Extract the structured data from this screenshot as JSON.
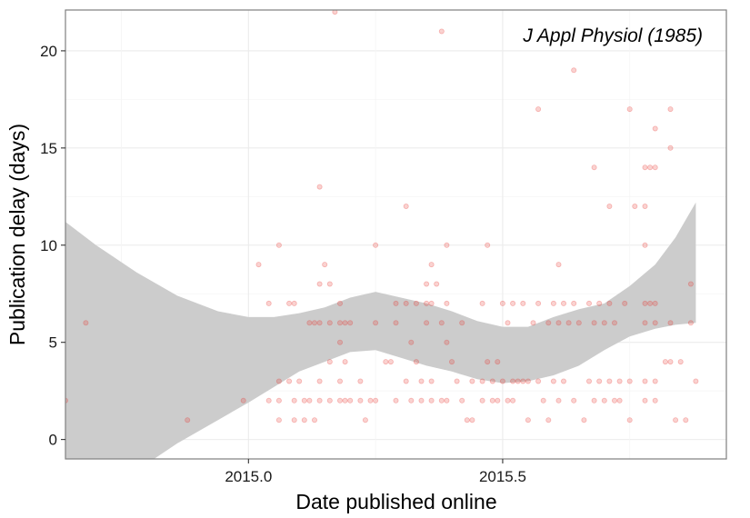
{
  "chart_data": {
    "type": "scatter",
    "title": "",
    "annotation": "J Appl Physiol (1985)",
    "xlabel": "Date published online",
    "ylabel": "Publication delay (days)",
    "xlim": [
      2014.64,
      2015.94
    ],
    "ylim": [
      -1,
      22.1
    ],
    "x_ticks": [
      2015.0,
      2015.5
    ],
    "x_tick_labels": [
      "2015.0",
      "2015.5"
    ],
    "y_ticks": [
      0,
      5,
      10,
      15,
      20
    ],
    "y_tick_labels": [
      "0",
      "5",
      "10",
      "15",
      "20"
    ],
    "grid": true,
    "point_color": "#e8302a",
    "band_color": "#cccccc",
    "points": [
      [
        2014.64,
        2
      ],
      [
        2014.68,
        6
      ],
      [
        2014.88,
        1
      ],
      [
        2014.99,
        2
      ],
      [
        2015.02,
        9
      ],
      [
        2015.04,
        7
      ],
      [
        2015.04,
        2
      ],
      [
        2015.06,
        10
      ],
      [
        2015.06,
        3
      ],
      [
        2015.06,
        2
      ],
      [
        2015.06,
        1
      ],
      [
        2015.08,
        7
      ],
      [
        2015.08,
        3
      ],
      [
        2015.09,
        7
      ],
      [
        2015.09,
        2
      ],
      [
        2015.09,
        1
      ],
      [
        2015.1,
        3
      ],
      [
        2015.11,
        2
      ],
      [
        2015.11,
        1
      ],
      [
        2015.12,
        6
      ],
      [
        2015.12,
        2
      ],
      [
        2015.13,
        6
      ],
      [
        2015.13,
        1
      ],
      [
        2015.14,
        13
      ],
      [
        2015.14,
        8
      ],
      [
        2015.14,
        6
      ],
      [
        2015.14,
        3
      ],
      [
        2015.14,
        2
      ],
      [
        2015.15,
        9
      ],
      [
        2015.16,
        8
      ],
      [
        2015.16,
        6
      ],
      [
        2015.16,
        4
      ],
      [
        2015.16,
        2
      ],
      [
        2015.17,
        22
      ],
      [
        2015.18,
        7
      ],
      [
        2015.18,
        6
      ],
      [
        2015.18,
        5
      ],
      [
        2015.18,
        3
      ],
      [
        2015.18,
        2
      ],
      [
        2015.19,
        6
      ],
      [
        2015.19,
        4
      ],
      [
        2015.19,
        2
      ],
      [
        2015.2,
        6
      ],
      [
        2015.2,
        2
      ],
      [
        2015.22,
        3
      ],
      [
        2015.22,
        2
      ],
      [
        2015.23,
        1
      ],
      [
        2015.24,
        2
      ],
      [
        2015.25,
        10
      ],
      [
        2015.25,
        6
      ],
      [
        2015.25,
        2
      ],
      [
        2015.27,
        4
      ],
      [
        2015.28,
        4
      ],
      [
        2015.29,
        7
      ],
      [
        2015.29,
        6
      ],
      [
        2015.29,
        2
      ],
      [
        2015.31,
        12
      ],
      [
        2015.31,
        7
      ],
      [
        2015.31,
        3
      ],
      [
        2015.32,
        5
      ],
      [
        2015.32,
        2
      ],
      [
        2015.33,
        7
      ],
      [
        2015.33,
        4
      ],
      [
        2015.34,
        3
      ],
      [
        2015.34,
        2
      ],
      [
        2015.35,
        8
      ],
      [
        2015.35,
        7
      ],
      [
        2015.35,
        6
      ],
      [
        2015.36,
        9
      ],
      [
        2015.36,
        7
      ],
      [
        2015.36,
        3
      ],
      [
        2015.36,
        2
      ],
      [
        2015.37,
        8
      ],
      [
        2015.38,
        21
      ],
      [
        2015.38,
        6
      ],
      [
        2015.38,
        2
      ],
      [
        2015.39,
        10
      ],
      [
        2015.39,
        7
      ],
      [
        2015.39,
        5
      ],
      [
        2015.39,
        2
      ],
      [
        2015.4,
        4
      ],
      [
        2015.41,
        3
      ],
      [
        2015.42,
        2
      ],
      [
        2015.42,
        6
      ],
      [
        2015.43,
        1
      ],
      [
        2015.44,
        3
      ],
      [
        2015.44,
        1
      ],
      [
        2015.46,
        7
      ],
      [
        2015.46,
        3
      ],
      [
        2015.46,
        2
      ],
      [
        2015.47,
        10
      ],
      [
        2015.47,
        4
      ],
      [
        2015.48,
        2
      ],
      [
        2015.48,
        3
      ],
      [
        2015.49,
        4
      ],
      [
        2015.49,
        2
      ],
      [
        2015.5,
        7
      ],
      [
        2015.5,
        3
      ],
      [
        2015.51,
        2
      ],
      [
        2015.51,
        6
      ],
      [
        2015.52,
        7
      ],
      [
        2015.52,
        3
      ],
      [
        2015.52,
        2
      ],
      [
        2015.53,
        3
      ],
      [
        2015.54,
        7
      ],
      [
        2015.54,
        3
      ],
      [
        2015.55,
        1
      ],
      [
        2015.55,
        3
      ],
      [
        2015.56,
        6
      ],
      [
        2015.57,
        17
      ],
      [
        2015.57,
        7
      ],
      [
        2015.57,
        3
      ],
      [
        2015.58,
        2
      ],
      [
        2015.59,
        6
      ],
      [
        2015.59,
        1
      ],
      [
        2015.6,
        7
      ],
      [
        2015.6,
        3
      ],
      [
        2015.61,
        9
      ],
      [
        2015.61,
        6
      ],
      [
        2015.61,
        2
      ],
      [
        2015.62,
        7
      ],
      [
        2015.62,
        3
      ],
      [
        2015.63,
        6
      ],
      [
        2015.64,
        19
      ],
      [
        2015.64,
        7
      ],
      [
        2015.64,
        2
      ],
      [
        2015.65,
        6
      ],
      [
        2015.66,
        1
      ],
      [
        2015.67,
        7
      ],
      [
        2015.67,
        3
      ],
      [
        2015.68,
        14
      ],
      [
        2015.68,
        6
      ],
      [
        2015.68,
        2
      ],
      [
        2015.69,
        7
      ],
      [
        2015.69,
        3
      ],
      [
        2015.7,
        6
      ],
      [
        2015.7,
        2
      ],
      [
        2015.71,
        12
      ],
      [
        2015.71,
        7
      ],
      [
        2015.71,
        3
      ],
      [
        2015.72,
        6
      ],
      [
        2015.72,
        2
      ],
      [
        2015.73,
        3
      ],
      [
        2015.73,
        2
      ],
      [
        2015.74,
        7
      ],
      [
        2015.75,
        17
      ],
      [
        2015.75,
        3
      ],
      [
        2015.75,
        1
      ],
      [
        2015.76,
        12
      ],
      [
        2015.78,
        14
      ],
      [
        2015.78,
        12
      ],
      [
        2015.78,
        10
      ],
      [
        2015.78,
        7
      ],
      [
        2015.78,
        6
      ],
      [
        2015.78,
        3
      ],
      [
        2015.78,
        2
      ],
      [
        2015.79,
        14
      ],
      [
        2015.79,
        7
      ],
      [
        2015.8,
        16
      ],
      [
        2015.8,
        14
      ],
      [
        2015.8,
        7
      ],
      [
        2015.8,
        6
      ],
      [
        2015.8,
        3
      ],
      [
        2015.8,
        2
      ],
      [
        2015.82,
        4
      ],
      [
        2015.83,
        17
      ],
      [
        2015.83,
        15
      ],
      [
        2015.83,
        6
      ],
      [
        2015.83,
        4
      ],
      [
        2015.84,
        1
      ],
      [
        2015.85,
        4
      ],
      [
        2015.86,
        1
      ],
      [
        2015.87,
        6
      ],
      [
        2015.87,
        8
      ],
      [
        2015.88,
        3
      ]
    ],
    "smooth_band": [
      {
        "x": 2014.64,
        "low": -3.0,
        "mid": 4.1,
        "high": 11.2
      },
      {
        "x": 2014.7,
        "low": -2.4,
        "mid": 3.8,
        "high": 10.0
      },
      {
        "x": 2014.78,
        "low": -1.6,
        "mid": 3.9,
        "high": 8.6
      },
      {
        "x": 2014.86,
        "low": -0.2,
        "mid": 3.8,
        "high": 7.4
      },
      {
        "x": 2014.94,
        "low": 1.0,
        "mid": 3.8,
        "high": 6.6
      },
      {
        "x": 2015.0,
        "low": 1.9,
        "mid": 4.1,
        "high": 6.3
      },
      {
        "x": 2015.05,
        "low": 2.7,
        "mid": 4.5,
        "high": 6.3
      },
      {
        "x": 2015.1,
        "low": 3.5,
        "mid": 5.1,
        "high": 6.5
      },
      {
        "x": 2015.15,
        "low": 4.0,
        "mid": 5.6,
        "high": 6.8
      },
      {
        "x": 2015.2,
        "low": 4.5,
        "mid": 5.9,
        "high": 7.3
      },
      {
        "x": 2015.25,
        "low": 4.6,
        "mid": 6.1,
        "high": 7.6
      },
      {
        "x": 2015.3,
        "low": 4.2,
        "mid": 5.9,
        "high": 7.3
      },
      {
        "x": 2015.35,
        "low": 3.8,
        "mid": 5.6,
        "high": 7.0
      },
      {
        "x": 2015.4,
        "low": 3.5,
        "mid": 5.0,
        "high": 6.6
      },
      {
        "x": 2015.45,
        "low": 3.1,
        "mid": 4.6,
        "high": 6.1
      },
      {
        "x": 2015.5,
        "low": 2.9,
        "mid": 4.3,
        "high": 5.8
      },
      {
        "x": 2015.55,
        "low": 3.0,
        "mid": 4.4,
        "high": 5.8
      },
      {
        "x": 2015.6,
        "low": 3.3,
        "mid": 4.7,
        "high": 6.3
      },
      {
        "x": 2015.65,
        "low": 3.8,
        "mid": 5.2,
        "high": 6.7
      },
      {
        "x": 2015.7,
        "low": 4.6,
        "mid": 5.7,
        "high": 7.0
      },
      {
        "x": 2015.75,
        "low": 5.3,
        "mid": 6.3,
        "high": 7.9
      },
      {
        "x": 2015.8,
        "low": 5.7,
        "mid": 7.0,
        "high": 9.0
      },
      {
        "x": 2015.84,
        "low": 5.9,
        "mid": 7.8,
        "high": 10.4
      },
      {
        "x": 2015.88,
        "low": 6.0,
        "mid": 8.7,
        "high": 12.2
      }
    ]
  }
}
